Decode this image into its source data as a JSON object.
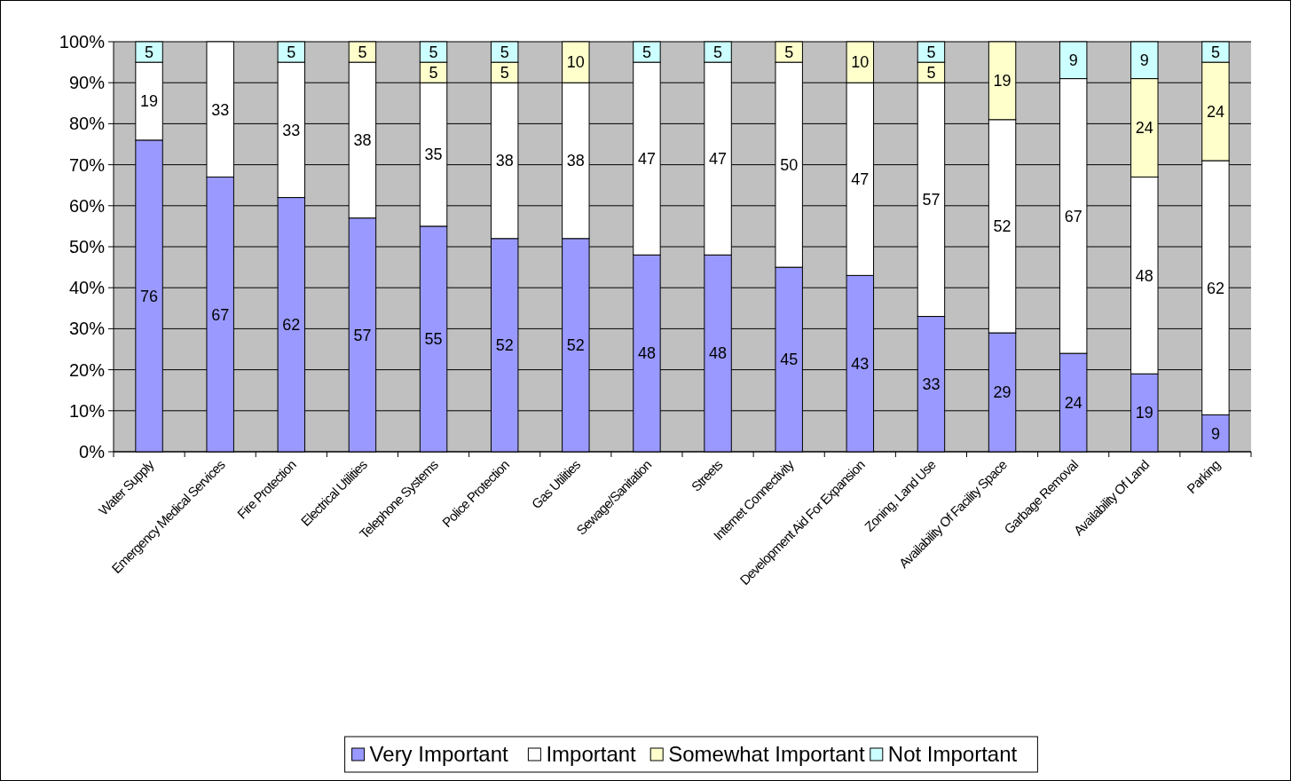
{
  "chart_data": {
    "type": "bar",
    "stacked": true,
    "data_labels": true,
    "grid": "y",
    "legend": "bottom",
    "categories": [
      "Water Supply",
      "Emergency Medical Services",
      "Fire Protection",
      "Electrical Utilities",
      "Telephone Systems",
      "Police Protection",
      "Gas Utilities",
      "Sewage/Sanitation",
      "Streets",
      "Internet Connectivity",
      "Development Aid For Expansion",
      "Zoning, Land Use",
      "Availability Of Facility Space",
      "Garbage Removal",
      "Availability Of Land",
      "Parking"
    ],
    "ylim": [
      0,
      100
    ],
    "yticks": [
      {
        "value": 0,
        "label": "0%"
      },
      {
        "value": 10,
        "label": "10%"
      },
      {
        "value": 20,
        "label": "20%"
      },
      {
        "value": 30,
        "label": "30%"
      },
      {
        "value": 40,
        "label": "40%"
      },
      {
        "value": 50,
        "label": "50%"
      },
      {
        "value": 60,
        "label": "60%"
      },
      {
        "value": 70,
        "label": "70%"
      },
      {
        "value": 80,
        "label": "80%"
      },
      {
        "value": 90,
        "label": "90%"
      },
      {
        "value": 100,
        "label": "100%"
      }
    ],
    "series": [
      {
        "name": "Very Important",
        "color": "#9999ff",
        "values": [
          76,
          67,
          62,
          57,
          55,
          52,
          52,
          48,
          48,
          45,
          43,
          33,
          29,
          24,
          19,
          9
        ]
      },
      {
        "name": "Important",
        "color": "#ffffff",
        "values": [
          19,
          33,
          33,
          38,
          35,
          38,
          38,
          47,
          47,
          50,
          47,
          57,
          52,
          67,
          48,
          62
        ]
      },
      {
        "name": "Somewhat Important",
        "color": "#ffffcc",
        "values": [
          null,
          null,
          null,
          5,
          5,
          5,
          10,
          null,
          null,
          5,
          10,
          5,
          19,
          null,
          24,
          24
        ]
      },
      {
        "name": "Not Important",
        "color": "#ccffff",
        "values": [
          5,
          null,
          5,
          null,
          5,
          5,
          null,
          5,
          5,
          null,
          null,
          5,
          null,
          9,
          9,
          5
        ]
      }
    ]
  }
}
